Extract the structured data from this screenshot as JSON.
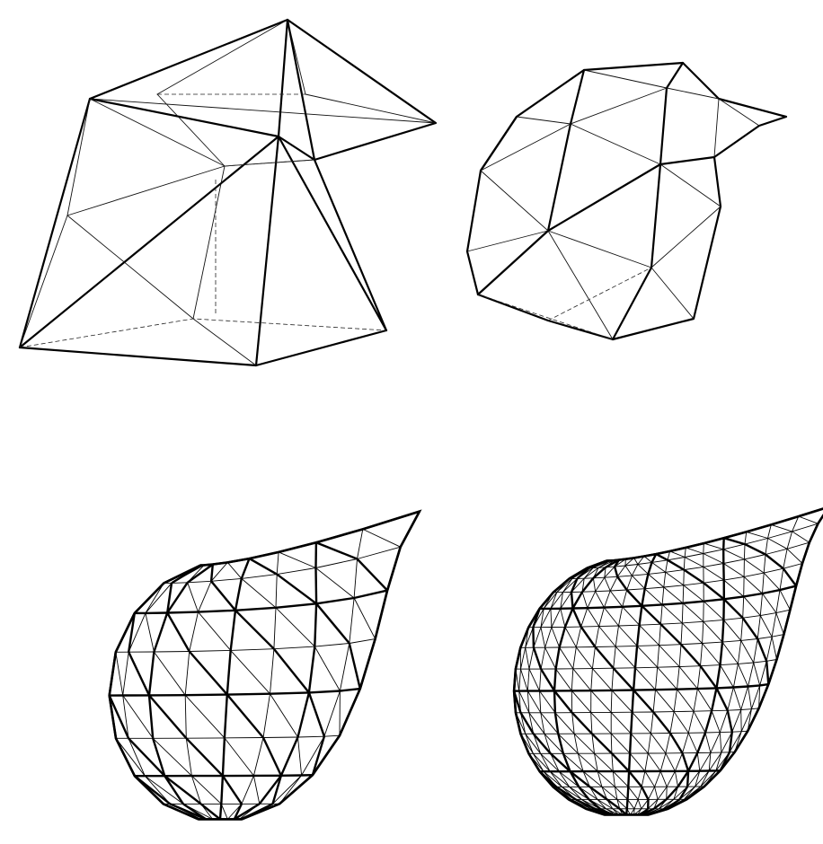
{
  "figure": {
    "panels": [
      {
        "id": "level-0",
        "subdivision_level": 0
      },
      {
        "id": "level-1",
        "subdivision_level": 1
      },
      {
        "id": "level-2",
        "subdivision_level": 2
      },
      {
        "id": "level-3",
        "subdivision_level": 3
      }
    ],
    "colors": {
      "stroke": "#000000",
      "background": "#ffffff"
    }
  }
}
